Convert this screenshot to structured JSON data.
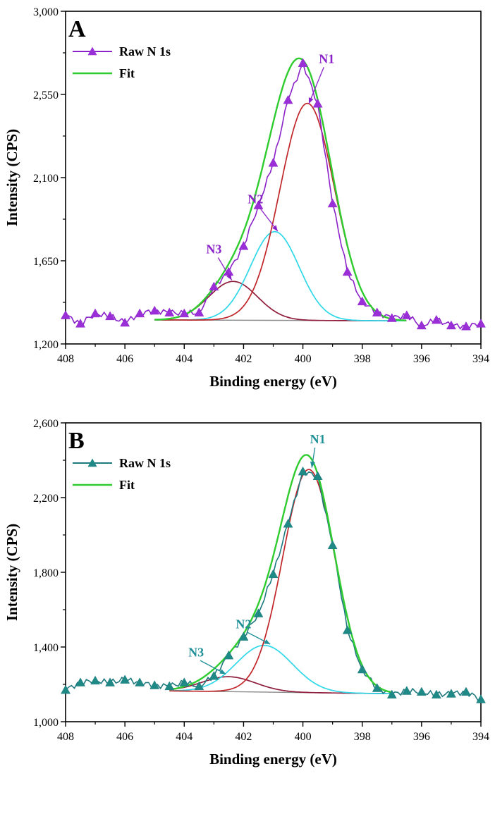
{
  "chart_data": [
    {
      "type": "line",
      "panel_label": "A",
      "xlabel": "Binding energy (eV)",
      "ylabel": "Intensity (CPS)",
      "xlim": [
        408,
        394
      ],
      "ylim": [
        1200,
        3000
      ],
      "xticks": [
        408,
        406,
        404,
        402,
        400,
        398,
        396,
        394
      ],
      "xtick_labels": [
        "408",
        "406",
        "404",
        "402",
        "400",
        "398",
        "396",
        "394"
      ],
      "yticks": [
        1200,
        1650,
        2100,
        2550,
        3000
      ],
      "ytick_labels": [
        "1,200",
        "1,650",
        "2,100",
        "2,550",
        "3,000"
      ],
      "legend": {
        "position": "top-left",
        "entries": [
          "Raw N 1s",
          "Fit"
        ]
      },
      "colors": {
        "raw": "#8b22c9",
        "marker": "#9a2fd8",
        "fit": "#2fcc2f",
        "n1": "#c0262a",
        "n2": "#2fd8e8",
        "n3": "#8f1d3b",
        "baseline": "#8a8a8a",
        "annotation": "#8b22c9"
      },
      "baseline": {
        "x": [
          405,
          396.5
        ],
        "y": [
          1330,
          1325
        ]
      },
      "peaks": [
        {
          "name": "N1",
          "center": 399.85,
          "height": 1175,
          "sigma": 0.92
        },
        {
          "name": "N2",
          "center": 400.95,
          "height": 480,
          "sigma": 0.82
        },
        {
          "name": "N3",
          "center": 402.35,
          "height": 210,
          "sigma": 0.82
        }
      ],
      "annotations": [
        {
          "label": "N1",
          "text_x": 399.2,
          "text_y": 2720,
          "arrow_x": 399.8,
          "arrow_y": 2500
        },
        {
          "label": "N2",
          "text_x": 401.6,
          "text_y": 1960,
          "arrow_x": 400.85,
          "arrow_y": 1810
        },
        {
          "label": "N3",
          "text_x": 403.0,
          "text_y": 1690,
          "arrow_x": 402.4,
          "arrow_y": 1545
        }
      ],
      "raw_points": {
        "x": [
          408,
          407.5,
          407,
          406.5,
          406,
          405.5,
          405,
          404.5,
          404,
          403.5,
          403,
          402.5,
          402,
          401.5,
          401,
          400.5,
          400,
          399.5,
          399,
          398.5,
          398,
          397.5,
          397,
          396.5,
          396,
          395.5,
          395,
          394.5,
          394
        ],
        "y": [
          1355,
          1310,
          1365,
          1350,
          1315,
          1365,
          1380,
          1370,
          1365,
          1370,
          1510,
          1590,
          1730,
          1950,
          2180,
          2520,
          2720,
          2500,
          1960,
          1590,
          1430,
          1370,
          1340,
          1355,
          1300,
          1330,
          1300,
          1295,
          1310
        ]
      }
    },
    {
      "type": "line",
      "panel_label": "B",
      "xlabel": "Binding energy (eV)",
      "ylabel": "Intensity (CPS)",
      "xlim": [
        408,
        394
      ],
      "ylim": [
        1000,
        2600
      ],
      "xticks": [
        408,
        406,
        404,
        402,
        400,
        398,
        396,
        394
      ],
      "xtick_labels": [
        "408",
        "406",
        "404",
        "402",
        "400",
        "398",
        "396",
        "394"
      ],
      "yticks": [
        1000,
        1400,
        1800,
        2200,
        2600
      ],
      "ytick_labels": [
        "1,000",
        "1,400",
        "1,800",
        "2,200",
        "2,600"
      ],
      "legend": {
        "position": "top-left",
        "entries": [
          "Raw N 1s",
          "Fit"
        ]
      },
      "colors": {
        "raw": "#1f7a80",
        "marker": "#1f8a85",
        "fit": "#2fcc2f",
        "n1": "#c0262a",
        "n2": "#2fd8e8",
        "n3": "#8f1d3b",
        "baseline": "#8a8a8a",
        "annotation": "#1f8f97"
      },
      "baseline": {
        "x": [
          404.5,
          397
        ],
        "y": [
          1165,
          1150
        ]
      },
      "peaks": [
        {
          "name": "N1",
          "center": 399.8,
          "height": 1195,
          "sigma": 0.88
        },
        {
          "name": "N2",
          "center": 401.3,
          "height": 250,
          "sigma": 0.95
        },
        {
          "name": "N3",
          "center": 402.5,
          "height": 80,
          "sigma": 0.9
        }
      ],
      "annotations": [
        {
          "label": "N1",
          "text_x": 399.5,
          "text_y": 2490,
          "arrow_x": 399.7,
          "arrow_y": 2360
        },
        {
          "label": "N2",
          "text_x": 402.0,
          "text_y": 1500,
          "arrow_x": 401.1,
          "arrow_y": 1415
        },
        {
          "label": "N3",
          "text_x": 403.6,
          "text_y": 1350,
          "arrow_x": 402.6,
          "arrow_y": 1255
        }
      ],
      "raw_points": {
        "x": [
          408,
          407.5,
          407,
          406.5,
          406,
          405.5,
          405,
          404.5,
          404,
          403.5,
          403,
          402.5,
          402,
          401.5,
          401,
          400.5,
          400,
          399.5,
          399,
          398.5,
          398,
          397.5,
          397,
          396.5,
          396,
          395.5,
          395,
          394.5,
          394
        ],
        "y": [
          1170,
          1210,
          1220,
          1210,
          1225,
          1210,
          1195,
          1190,
          1210,
          1190,
          1245,
          1355,
          1455,
          1580,
          1790,
          2060,
          2340,
          2315,
          1945,
          1490,
          1280,
          1180,
          1145,
          1165,
          1160,
          1145,
          1150,
          1160,
          1120
        ]
      }
    }
  ]
}
